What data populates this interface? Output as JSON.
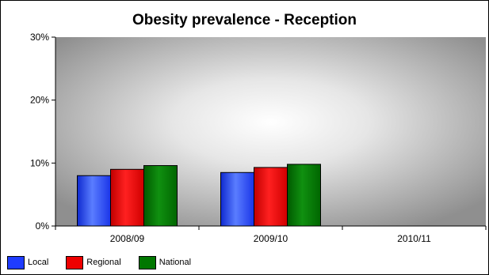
{
  "chart_data": {
    "type": "bar",
    "title": "Obesity prevalence - Reception",
    "xlabel": "",
    "ylabel": "",
    "categories": [
      "2008/09",
      "2009/10",
      "2010/11"
    ],
    "series": [
      {
        "name": "Local",
        "values": [
          8.0,
          8.5,
          null
        ],
        "color": "#1f3cff"
      },
      {
        "name": "Regional",
        "values": [
          9.0,
          9.3,
          null
        ],
        "color": "#ee0000"
      },
      {
        "name": "National",
        "values": [
          9.6,
          9.8,
          null
        ],
        "color": "#007700"
      }
    ],
    "ylim": [
      0,
      30
    ],
    "yticks": [
      0,
      10,
      20,
      30
    ],
    "ytick_labels": [
      "0%",
      "10%",
      "20%",
      "30%"
    ],
    "grid": false,
    "legend_position": "bottom-left",
    "plot_background": "radial gradient white center to grey"
  }
}
